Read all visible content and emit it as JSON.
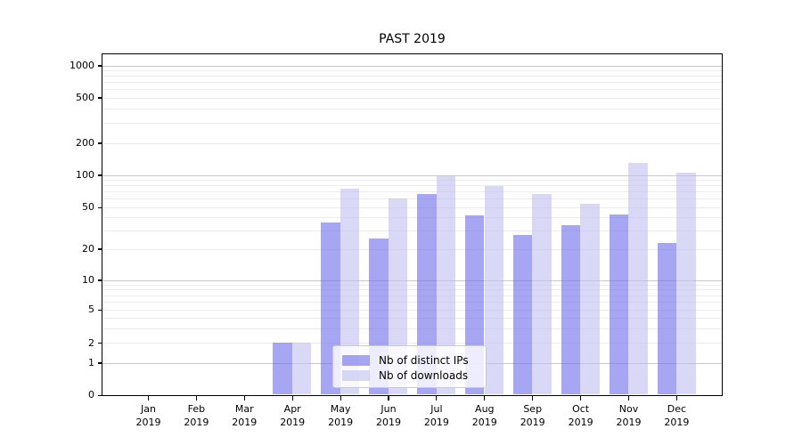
{
  "title": "PAST 2019",
  "legend": {
    "items": [
      {
        "label": "Nb of distinct IPs",
        "color": "#6a6ae9",
        "alpha": 0.6
      },
      {
        "label": "Nb of downloads",
        "color": "#c0c0f2",
        "alpha": 0.6
      }
    ]
  },
  "chart_data": {
    "type": "bar",
    "title": "PAST 2019",
    "categories": [
      "Jan 2019",
      "Feb 2019",
      "Mar 2019",
      "Apr 2019",
      "May 2019",
      "Jun 2019",
      "Jul 2019",
      "Aug 2019",
      "Sep 2019",
      "Oct 2019",
      "Nov 2019",
      "Dec 2019"
    ],
    "x_tick_months": [
      "Jan",
      "Feb",
      "Mar",
      "Apr",
      "May",
      "Jun",
      "Jul",
      "Aug",
      "Sep",
      "Oct",
      "Nov",
      "Dec"
    ],
    "x_tick_year": "2019",
    "series": [
      {
        "name": "Nb of distinct IPs",
        "color": "#6a6ae9",
        "alpha": 0.6,
        "values": [
          0,
          0,
          0,
          2,
          36,
          25,
          67,
          42,
          27,
          34,
          43,
          23
        ]
      },
      {
        "name": "Nb of downloads",
        "color": "#c0c0f2",
        "alpha": 0.6,
        "values": [
          0,
          0,
          0,
          2,
          74,
          60,
          100,
          79,
          67,
          54,
          130,
          105
        ]
      }
    ],
    "xlabel": "",
    "ylabel": "",
    "yscale": "symlog",
    "yticks": [
      0,
      1,
      2,
      5,
      10,
      20,
      50,
      100,
      200,
      500,
      1000
    ],
    "ylim": [
      0,
      1400
    ],
    "grid": true,
    "legend_position": "lower center"
  }
}
